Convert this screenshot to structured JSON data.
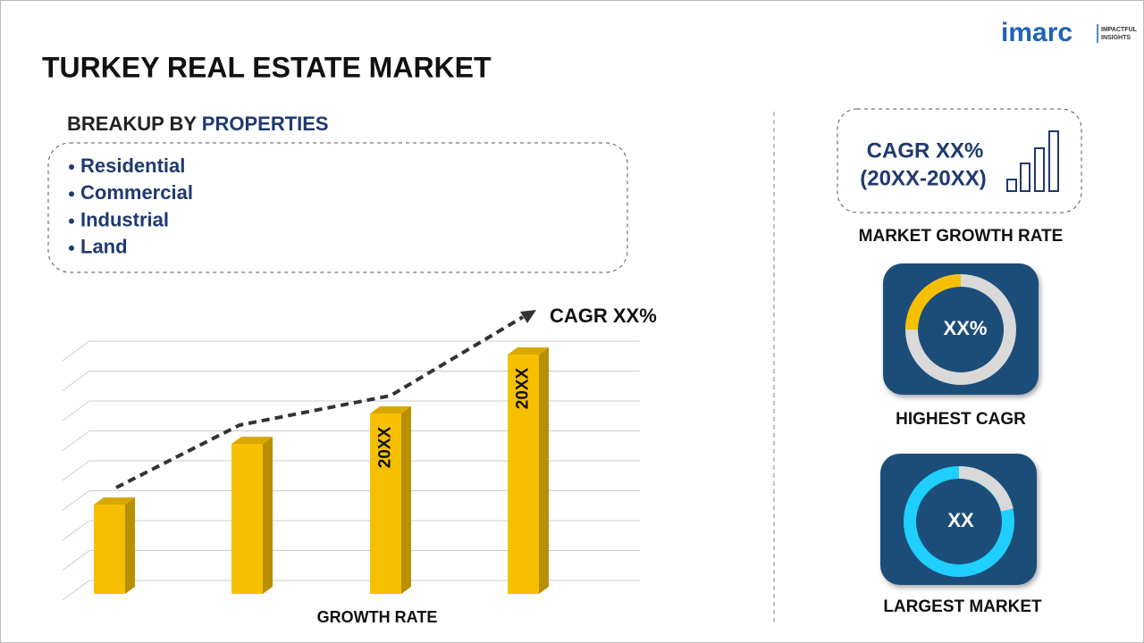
{
  "header": {
    "title": "TURKEY REAL ESTATE MARKET",
    "logo": {
      "brand": "imarc",
      "tagline": [
        "IMPACTFUL",
        "INSIGHTS"
      ]
    }
  },
  "breakup": {
    "heading_prefix": "BREAKUP BY",
    "heading_highlight": "PROPERTIES",
    "items": [
      "Residential",
      "Commercial",
      "Industrial",
      "Land"
    ]
  },
  "growth_chart": {
    "trend_label": "CAGR XX%",
    "bar_labels": [
      "20XX",
      "20XX"
    ],
    "axis_label": "GROWTH RATE"
  },
  "stats": {
    "cagr": {
      "line1": "CAGR XX%",
      "line2": "(20XX-20XX)",
      "caption": "MARKET GROWTH RATE"
    },
    "highest": {
      "value": "XX%",
      "caption": "HIGHEST CAGR"
    },
    "largest": {
      "value": "XX",
      "caption": "LARGEST MARKET"
    }
  }
}
